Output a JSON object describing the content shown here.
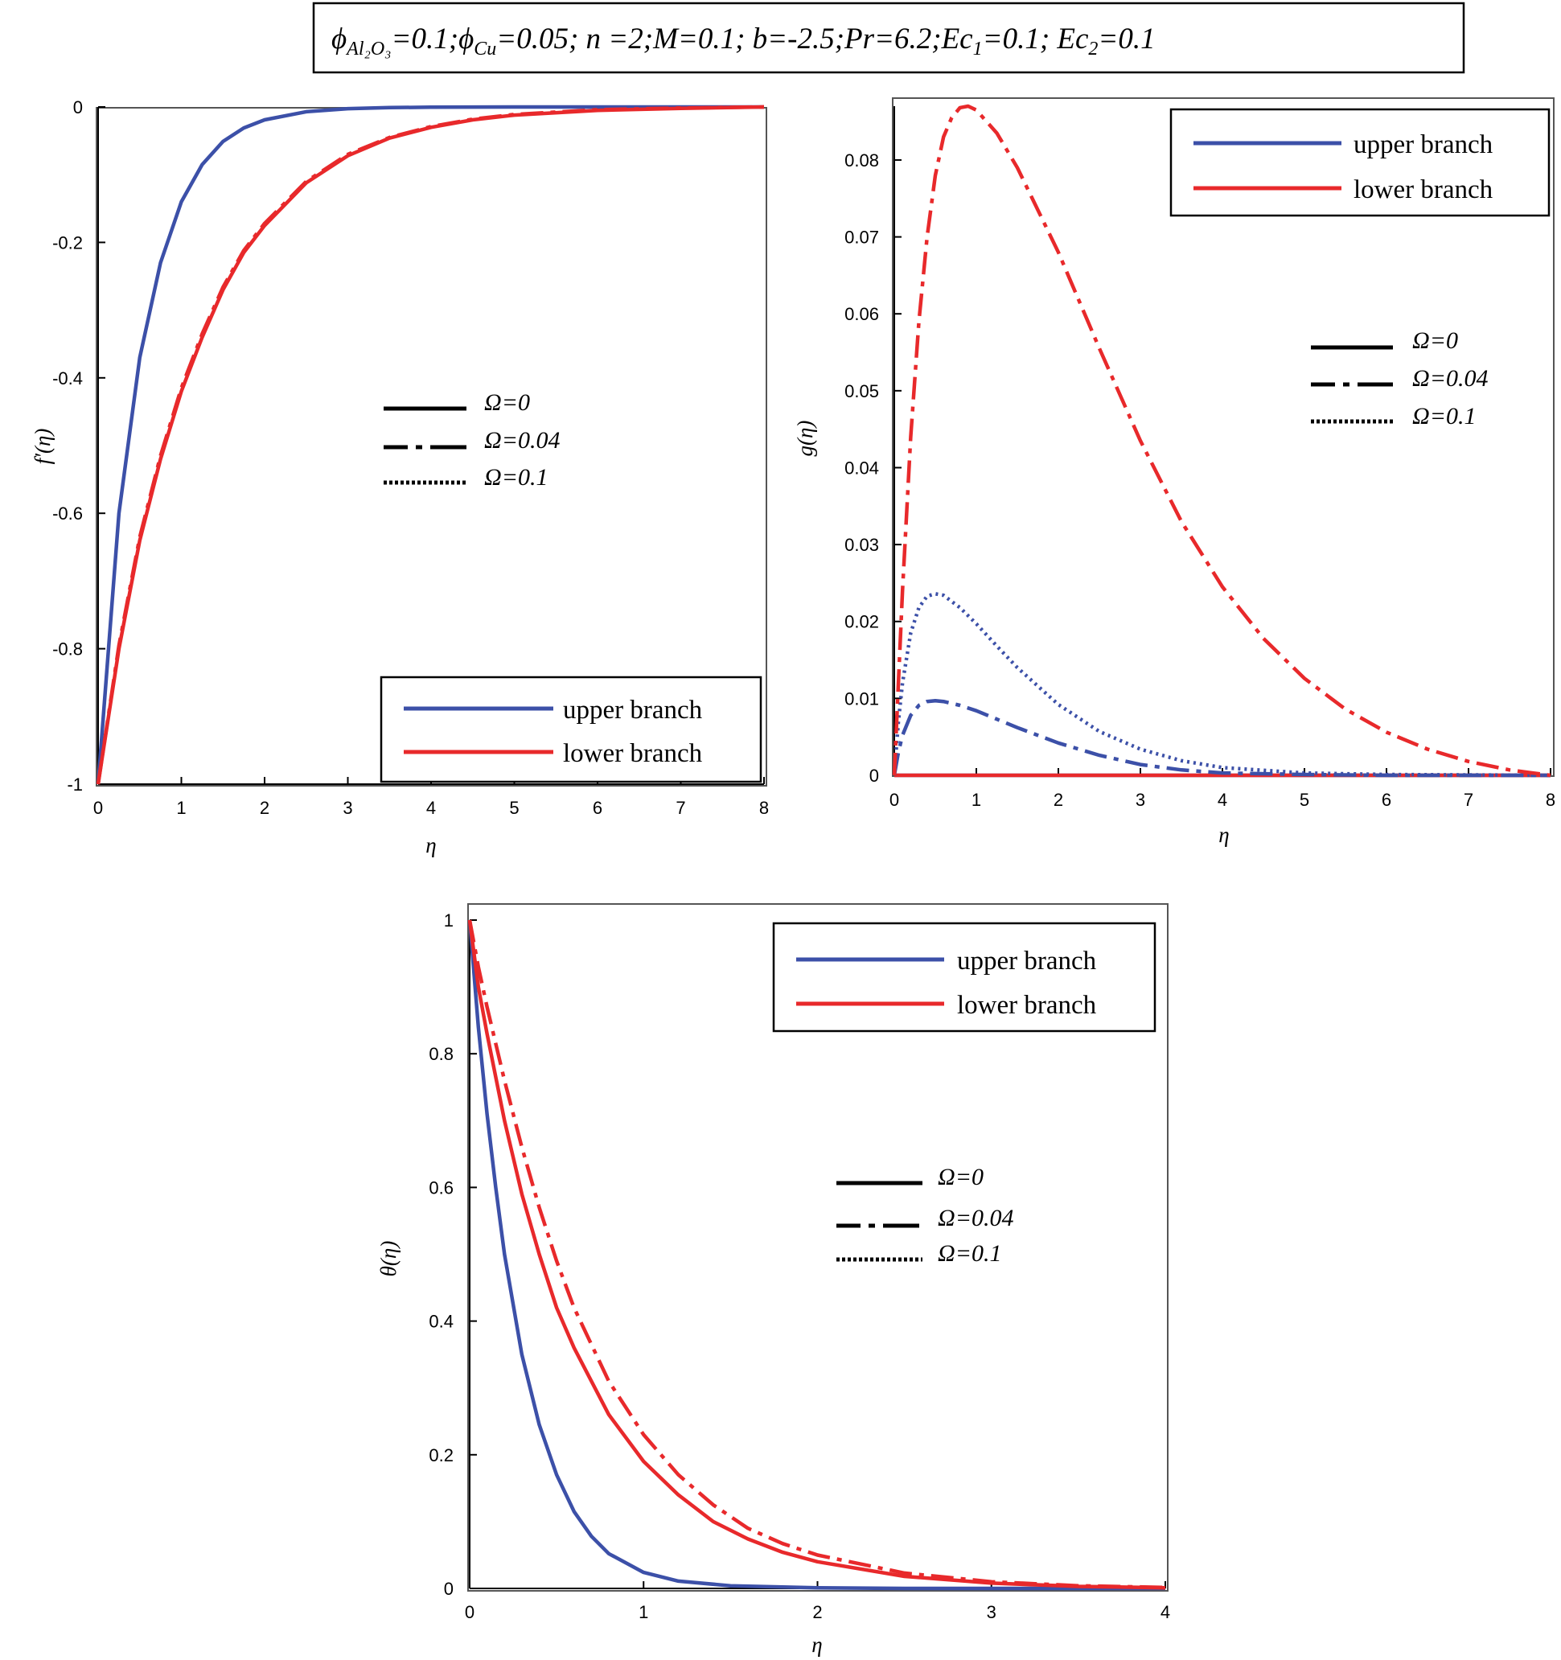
{
  "header": {
    "parameters": "ϕAl₂O₃=0.1; ϕCu=0.05; n=2; M=0.1; b=-2.5; Pr=6.2; Ec₁=0.1; Ec₂=0.1",
    "phi_symbol": "ϕ",
    "phi_al_sub": "Al₂O₃",
    "phi_al_val": "=0.1;",
    "phi_cu_sub": "Cu",
    "phi_cu_val": "=0.05; n =2;M=0.1; b=-2.5;Pr=6.2;Ec",
    "ec1_sub": "1",
    "ec1_val": "=0.1; Ec",
    "ec2_sub": "2",
    "ec2_val": "=0.1"
  },
  "colors": {
    "upper": "#3c50a8",
    "lower": "#e8292b",
    "axis": "#000000"
  },
  "legend_branch": {
    "upper": "upper branch",
    "lower": "lower branch"
  },
  "legend_omega": {
    "o0": "Ω=0",
    "o1": "Ω=0.04",
    "o2": "Ω=0.1"
  },
  "chart_data": [
    {
      "id": "fprime",
      "type": "line",
      "xlabel": "η",
      "ylabel": "f′(η)",
      "xlim": [
        0,
        8
      ],
      "ylim": [
        -1,
        0
      ],
      "xticks": [
        0,
        1,
        2,
        3,
        4,
        5,
        6,
        7,
        8
      ],
      "xtick_labels": [
        "0",
        "1",
        "2",
        "3",
        "4",
        "5",
        "6",
        "7",
        "8"
      ],
      "yticks": [
        0,
        -0.2,
        -0.4,
        -0.6,
        -0.8,
        -1
      ],
      "ytick_labels": [
        "0",
        "-0.2",
        "-0.4",
        "-0.6",
        "-0.8",
        "-1"
      ],
      "branch_legend_position": "bottom-right",
      "omega_legend_position": "center",
      "series": [
        {
          "name": "upper branch, Ω=0",
          "branch": "upper",
          "style": "solid",
          "x": [
            0,
            0.25,
            0.5,
            0.75,
            1,
            1.25,
            1.5,
            1.75,
            2,
            2.5,
            3,
            3.5,
            4,
            5,
            6,
            7,
            8
          ],
          "y": [
            -1,
            -0.6,
            -0.37,
            -0.23,
            -0.14,
            -0.085,
            -0.051,
            -0.031,
            -0.019,
            -0.007,
            -0.0025,
            -0.001,
            -0.0004,
            0,
            0,
            0,
            0
          ]
        },
        {
          "name": "lower branch, Ω=0",
          "branch": "lower",
          "style": "solid",
          "x": [
            0,
            0.25,
            0.5,
            0.75,
            1,
            1.25,
            1.5,
            1.75,
            2,
            2.5,
            3,
            3.5,
            4,
            4.5,
            5,
            6,
            7,
            8
          ],
          "y": [
            -1,
            -0.8,
            -0.64,
            -0.52,
            -0.42,
            -0.34,
            -0.27,
            -0.215,
            -0.175,
            -0.112,
            -0.072,
            -0.046,
            -0.03,
            -0.019,
            -0.012,
            -0.005,
            -0.002,
            0
          ]
        },
        {
          "name": "lower branch, Ω=0.04",
          "branch": "lower",
          "style": "dashdot",
          "x": [
            0,
            0.25,
            0.5,
            0.75,
            1,
            1.25,
            1.5,
            1.75,
            2,
            2.5,
            3,
            3.5,
            4,
            4.5,
            5,
            6,
            7,
            8
          ],
          "y": [
            -1,
            -0.795,
            -0.635,
            -0.515,
            -0.415,
            -0.335,
            -0.266,
            -0.212,
            -0.172,
            -0.11,
            -0.07,
            -0.045,
            -0.029,
            -0.018,
            -0.011,
            -0.004,
            -0.0015,
            0
          ]
        }
      ]
    },
    {
      "id": "g",
      "type": "line",
      "xlabel": "η",
      "ylabel": "g(η)",
      "xlim": [
        0,
        8
      ],
      "ylim": [
        0,
        0.087
      ],
      "xticks": [
        0,
        1,
        2,
        3,
        4,
        5,
        6,
        7,
        8
      ],
      "xtick_labels": [
        "0",
        "1",
        "2",
        "3",
        "4",
        "5",
        "6",
        "7",
        "8"
      ],
      "yticks": [
        0,
        0.01,
        0.02,
        0.03,
        0.04,
        0.05,
        0.06,
        0.07,
        0.08
      ],
      "ytick_labels": [
        "0",
        "0.01",
        "0.02",
        "0.03",
        "0.04",
        "0.05",
        "0.06",
        "0.07",
        "0.08"
      ],
      "branch_legend_position": "top-right",
      "omega_legend_position": "right",
      "series": [
        {
          "name": "upper branch, Ω=0",
          "branch": "upper",
          "style": "solid",
          "x": [
            0,
            8
          ],
          "y": [
            0,
            0
          ]
        },
        {
          "name": "lower branch, Ω=0",
          "branch": "lower",
          "style": "solid",
          "x": [
            0,
            8
          ],
          "y": [
            0,
            0
          ]
        },
        {
          "name": "upper branch, Ω=0.04",
          "branch": "upper",
          "style": "dashdot",
          "x": [
            0,
            0.05,
            0.1,
            0.2,
            0.3,
            0.4,
            0.5,
            0.6,
            0.8,
            1,
            1.25,
            1.5,
            2,
            2.5,
            3,
            3.5,
            4,
            5,
            6,
            8
          ],
          "y": [
            0,
            0.003,
            0.0052,
            0.0078,
            0.0091,
            0.0096,
            0.0097,
            0.0096,
            0.0091,
            0.0084,
            0.0073,
            0.0062,
            0.0042,
            0.0026,
            0.0014,
            0.0007,
            0.0003,
            0.0001,
            0,
            0
          ]
        },
        {
          "name": "upper branch, Ω=0.1",
          "branch": "upper",
          "style": "dotted",
          "x": [
            0,
            0.05,
            0.1,
            0.2,
            0.3,
            0.4,
            0.5,
            0.6,
            0.8,
            1,
            1.25,
            1.5,
            2,
            2.5,
            3,
            3.5,
            4,
            5,
            6,
            8
          ],
          "y": [
            0,
            0.007,
            0.012,
            0.0185,
            0.0218,
            0.0233,
            0.0236,
            0.0234,
            0.0218,
            0.0197,
            0.0168,
            0.014,
            0.0092,
            0.0057,
            0.0034,
            0.0019,
            0.001,
            0.0003,
            0.0001,
            0
          ]
        },
        {
          "name": "lower branch, Ω=0.04",
          "branch": "lower",
          "style": "dashdot",
          "x": [
            0,
            0.05,
            0.1,
            0.2,
            0.3,
            0.4,
            0.5,
            0.6,
            0.7,
            0.8,
            0.9,
            1,
            1.25,
            1.5,
            2,
            2.5,
            3,
            3.5,
            4,
            4.5,
            5,
            5.5,
            6,
            6.5,
            7,
            7.5,
            8
          ],
          "y": [
            0,
            0.012,
            0.024,
            0.044,
            0.059,
            0.07,
            0.078,
            0.083,
            0.0855,
            0.0868,
            0.087,
            0.0865,
            0.0835,
            0.079,
            0.068,
            0.0555,
            0.0435,
            0.033,
            0.0245,
            0.0178,
            0.0126,
            0.0086,
            0.0056,
            0.0034,
            0.0018,
            0.0007,
            0
          ]
        }
      ]
    },
    {
      "id": "theta",
      "type": "line",
      "xlabel": "η",
      "ylabel": "θ(η)",
      "xlim": [
        0,
        4
      ],
      "ylim": [
        0,
        1
      ],
      "xticks": [
        0,
        1,
        2,
        3,
        4
      ],
      "xtick_labels": [
        "0",
        "1",
        "2",
        "3",
        "4"
      ],
      "yticks": [
        0,
        0.2,
        0.4,
        0.6,
        0.8,
        1
      ],
      "ytick_labels": [
        "0",
        "0.2",
        "0.4",
        "0.6",
        "0.8",
        "1"
      ],
      "branch_legend_position": "top-right",
      "omega_legend_position": "right",
      "series": [
        {
          "name": "upper branch, Ω=0",
          "branch": "upper",
          "style": "solid",
          "x": [
            0,
            0.05,
            0.1,
            0.15,
            0.2,
            0.3,
            0.4,
            0.5,
            0.6,
            0.7,
            0.8,
            1,
            1.2,
            1.5,
            2,
            2.5,
            3,
            4
          ],
          "y": [
            1,
            0.84,
            0.71,
            0.6,
            0.5,
            0.35,
            0.245,
            0.17,
            0.115,
            0.078,
            0.052,
            0.024,
            0.011,
            0.004,
            0.001,
            0,
            0,
            0
          ]
        },
        {
          "name": "lower branch, Ω=0",
          "branch": "lower",
          "style": "solid",
          "x": [
            0,
            0.05,
            0.1,
            0.2,
            0.3,
            0.4,
            0.5,
            0.6,
            0.8,
            1,
            1.2,
            1.4,
            1.6,
            1.8,
            2,
            2.5,
            3,
            3.5,
            4
          ],
          "y": [
            1,
            0.9,
            0.83,
            0.7,
            0.59,
            0.5,
            0.42,
            0.36,
            0.26,
            0.19,
            0.14,
            0.1,
            0.074,
            0.054,
            0.04,
            0.018,
            0.008,
            0.003,
            0.001
          ]
        },
        {
          "name": "lower branch, Ω=0.04",
          "branch": "lower",
          "style": "dashdot",
          "x": [
            0,
            0.05,
            0.1,
            0.2,
            0.3,
            0.4,
            0.5,
            0.6,
            0.8,
            1,
            1.2,
            1.4,
            1.6,
            1.8,
            2,
            2.5,
            3,
            3.5,
            4
          ],
          "y": [
            1,
            0.93,
            0.87,
            0.76,
            0.66,
            0.57,
            0.49,
            0.42,
            0.31,
            0.23,
            0.17,
            0.125,
            0.09,
            0.067,
            0.05,
            0.023,
            0.01,
            0.004,
            0.0015
          ]
        }
      ]
    }
  ]
}
